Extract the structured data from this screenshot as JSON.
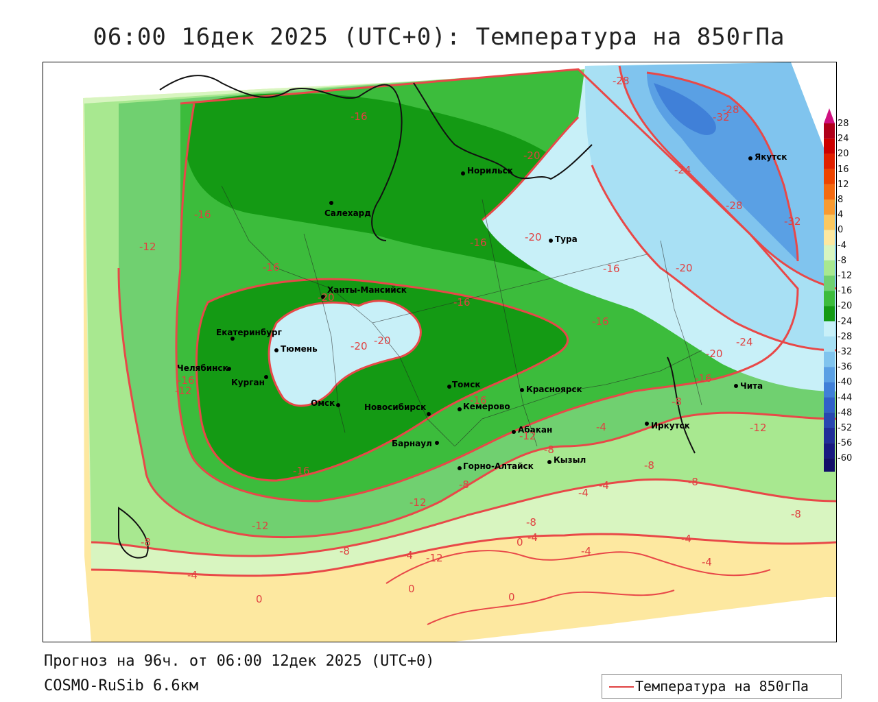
{
  "title": "06:00 16дек 2025 (UTC+0): Температура на 850гПа",
  "footer": {
    "forecast": "Прогноз на 96ч. от 06:00 12дек 2025 (UTC+0)",
    "model": "COSMO-RuSib 6.6км"
  },
  "legend": {
    "label": "Температура на 850гПа",
    "line_color": "#e04040"
  },
  "colorbar": {
    "labels": [
      "28",
      "24",
      "20",
      "16",
      "12",
      "8",
      "4",
      "0",
      "-4",
      "-8",
      "-12",
      "-16",
      "-20",
      "-24",
      "-28",
      "-32",
      "-36",
      "-40",
      "-44",
      "-48",
      "-52",
      "-56",
      "-60"
    ],
    "colors": [
      "#b0001a",
      "#cc0000",
      "#e02000",
      "#ee4400",
      "#f46a10",
      "#f89a30",
      "#fbc860",
      "#fde8a0",
      "#d8f5c0",
      "#a8e890",
      "#70d070",
      "#3cbc3c",
      "#149a14",
      "#c8f0f8",
      "#a8e0f4",
      "#80c4ee",
      "#5aa0e4",
      "#4080d8",
      "#3060c8",
      "#2848b0",
      "#202e98",
      "#181a80",
      "#120e68"
    ]
  },
  "cities": [
    {
      "name": "Норильск"
    },
    {
      "name": "Салехард"
    },
    {
      "name": "Тура"
    },
    {
      "name": "Якутск"
    },
    {
      "name": "Ханты-Мансийск"
    },
    {
      "name": "Екатеринбург"
    },
    {
      "name": "Тюмень"
    },
    {
      "name": "Челябинск"
    },
    {
      "name": "Курган"
    },
    {
      "name": "Омск"
    },
    {
      "name": "Новосибирск"
    },
    {
      "name": "Томск"
    },
    {
      "name": "Кемерово"
    },
    {
      "name": "Красноярск"
    },
    {
      "name": "Барнаул"
    },
    {
      "name": "Абакан"
    },
    {
      "name": "Кызыл"
    },
    {
      "name": "Горно-Алтайск"
    },
    {
      "name": "Иркутск"
    },
    {
      "name": "Чита"
    }
  ],
  "contour_labels": [
    "-16",
    "-28",
    "-28",
    "-32",
    "-20",
    "-24",
    "-28",
    "-32",
    "-16",
    "-12",
    "-16",
    "-16",
    "-20",
    "-16",
    "-20",
    "-16",
    "-16",
    "-20",
    "-20",
    "-20",
    "-12",
    "-24",
    "-20",
    "-16",
    "-16",
    "-12",
    "-16",
    "-8",
    "-12",
    "-4",
    "-12",
    "-8",
    "-16",
    "-12",
    "-8",
    "-4",
    "-8",
    "-4",
    "-8",
    "-8",
    "-4",
    "-8",
    "-4",
    "-8",
    "-12",
    "-4",
    "-8",
    "-4",
    "-4",
    "0",
    "0",
    "0",
    "0",
    "-4"
  ]
}
